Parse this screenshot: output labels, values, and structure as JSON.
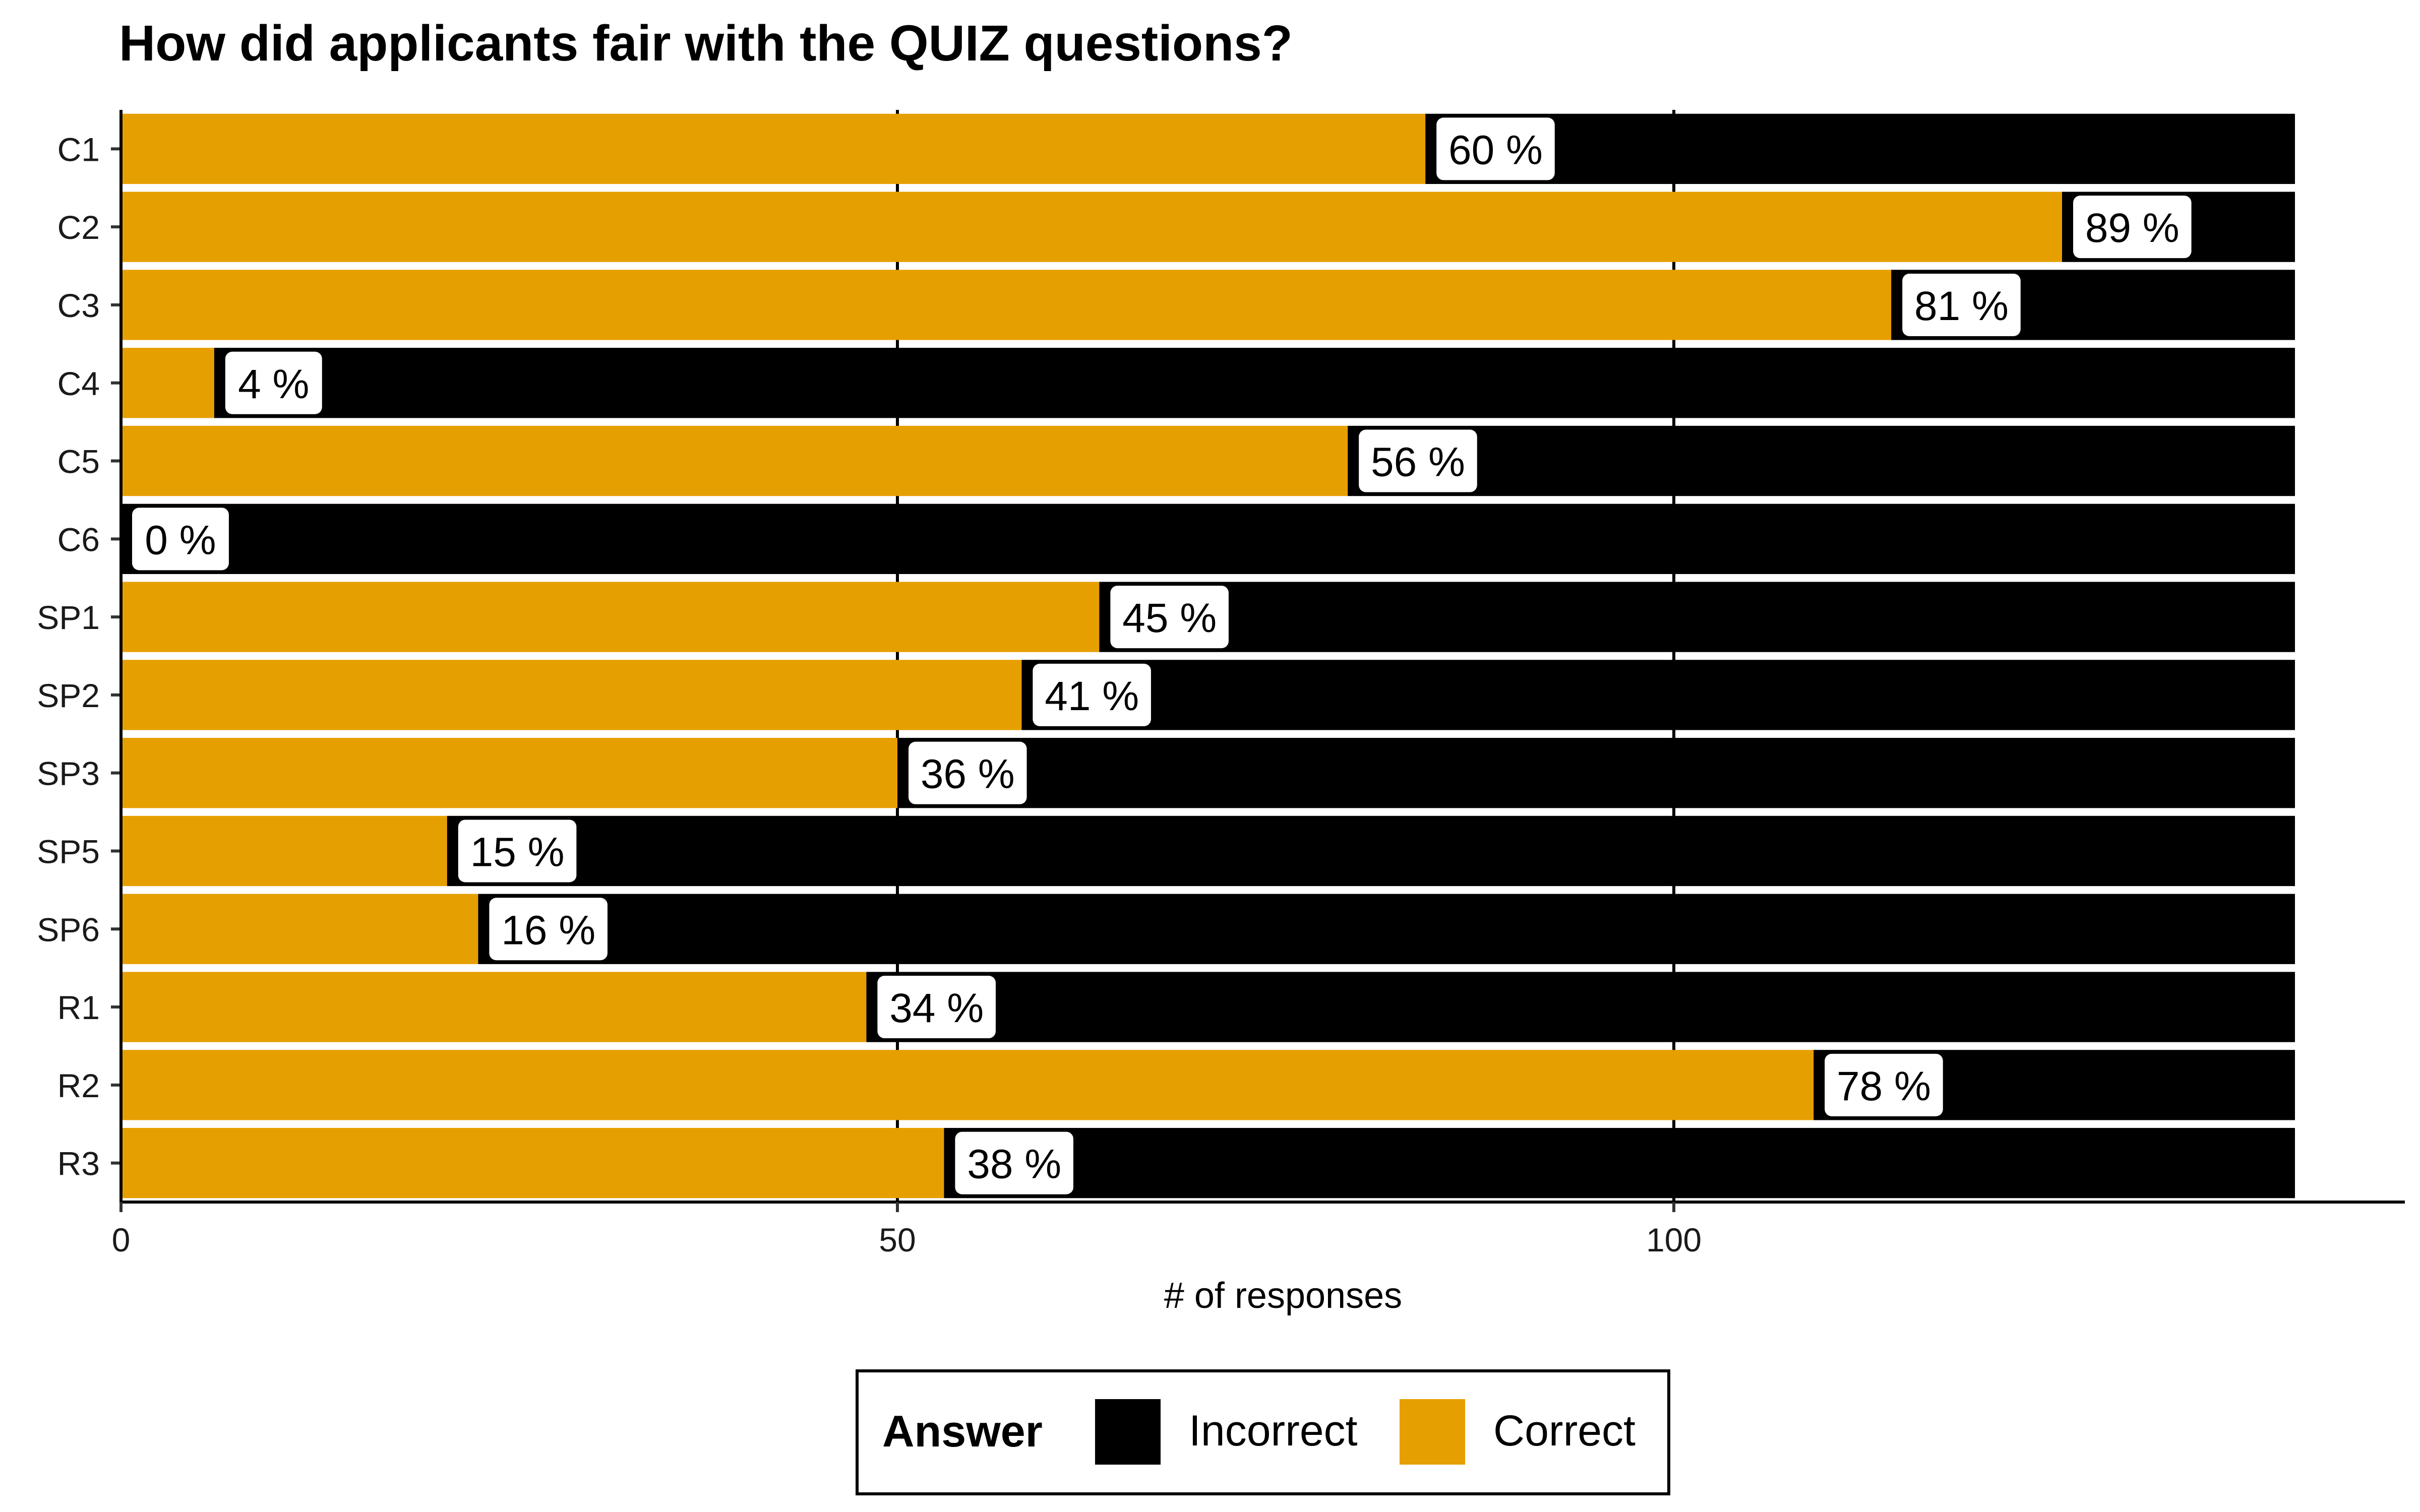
{
  "chart_data": {
    "type": "bar",
    "orientation": "horizontal",
    "stacked": true,
    "title": "How did applicants fair with the QUIZ questions?",
    "xlabel": "# of responses",
    "ylabel": "",
    "xlim": [
      0,
      147
    ],
    "x_ticks": [
      0,
      50,
      100
    ],
    "grid": "vertical major lines",
    "categories": [
      "C1",
      "C2",
      "C3",
      "C4",
      "C5",
      "C6",
      "SP1",
      "SP2",
      "SP3",
      "SP5",
      "SP6",
      "R1",
      "R2",
      "R3"
    ],
    "total": 140,
    "series": [
      {
        "name": "Correct",
        "color": "#E69F00",
        "values": [
          84,
          125,
          114,
          6,
          79,
          0,
          63,
          58,
          50,
          21,
          23,
          48,
          109,
          53
        ]
      },
      {
        "name": "Incorrect",
        "color": "#000000",
        "values": [
          56,
          15,
          26,
          134,
          61,
          140,
          77,
          82,
          90,
          119,
          117,
          92,
          31,
          87
        ]
      }
    ],
    "data_labels": [
      "60 %",
      "89 %",
      "81 %",
      "4 %",
      "56 %",
      "0 %",
      "45 %",
      "41 %",
      "36 %",
      "15 %",
      "16 %",
      "34 %",
      "78 %",
      "38 %"
    ],
    "legend": {
      "title": "Answer",
      "position": "bottom",
      "items": [
        {
          "label": "Incorrect",
          "color": "#000000"
        },
        {
          "label": "Correct",
          "color": "#E69F00"
        }
      ]
    }
  }
}
